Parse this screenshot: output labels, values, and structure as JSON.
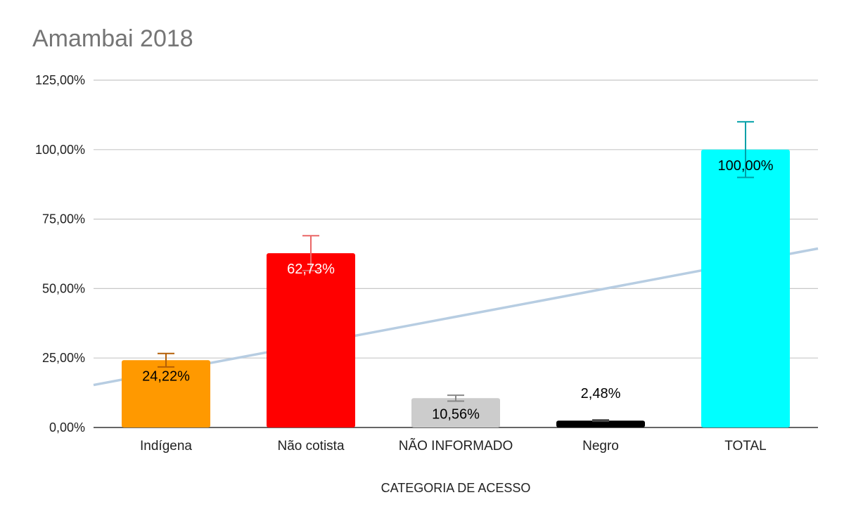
{
  "chart_data": {
    "type": "bar",
    "title": "Amambai 2018",
    "xlabel": "CATEGORIA DE ACESSO",
    "ylabel": "",
    "ylim": [
      0,
      125
    ],
    "yticks": [
      "0,00%",
      "25,00%",
      "50,00%",
      "75,00%",
      "100,00%",
      "125,00%"
    ],
    "ytick_values": [
      0,
      25,
      50,
      75,
      100,
      125
    ],
    "grid": true,
    "categories": [
      "Indígena",
      "Não cotista",
      "NÃO INFORMADO",
      "Negro",
      "TOTAL"
    ],
    "values": [
      24.22,
      62.73,
      10.56,
      2.48,
      100.0
    ],
    "data_labels": [
      "24,22%",
      "62,73%",
      "10,56%",
      "2,48%",
      "100,00%"
    ],
    "colors": [
      "#ff9900",
      "#ff0000",
      "#cccccc",
      "#000000",
      "#00ffff"
    ],
    "label_colors": [
      "#000000",
      "#ffffff",
      "#000000",
      "#000000",
      "#000000"
    ],
    "error_bars": {
      "plus": [
        2.42,
        6.27,
        1.06,
        0.25,
        10.0
      ],
      "minus": [
        2.42,
        6.27,
        1.06,
        0.25,
        10.0
      ],
      "colors": [
        "#b45f06",
        "#ea6666",
        "#888888",
        "#444444",
        "#00a0a8"
      ]
    },
    "trendline": {
      "type": "linear",
      "color": "#b7cde2",
      "start_value": 15.3,
      "end_value": 64.4
    }
  }
}
